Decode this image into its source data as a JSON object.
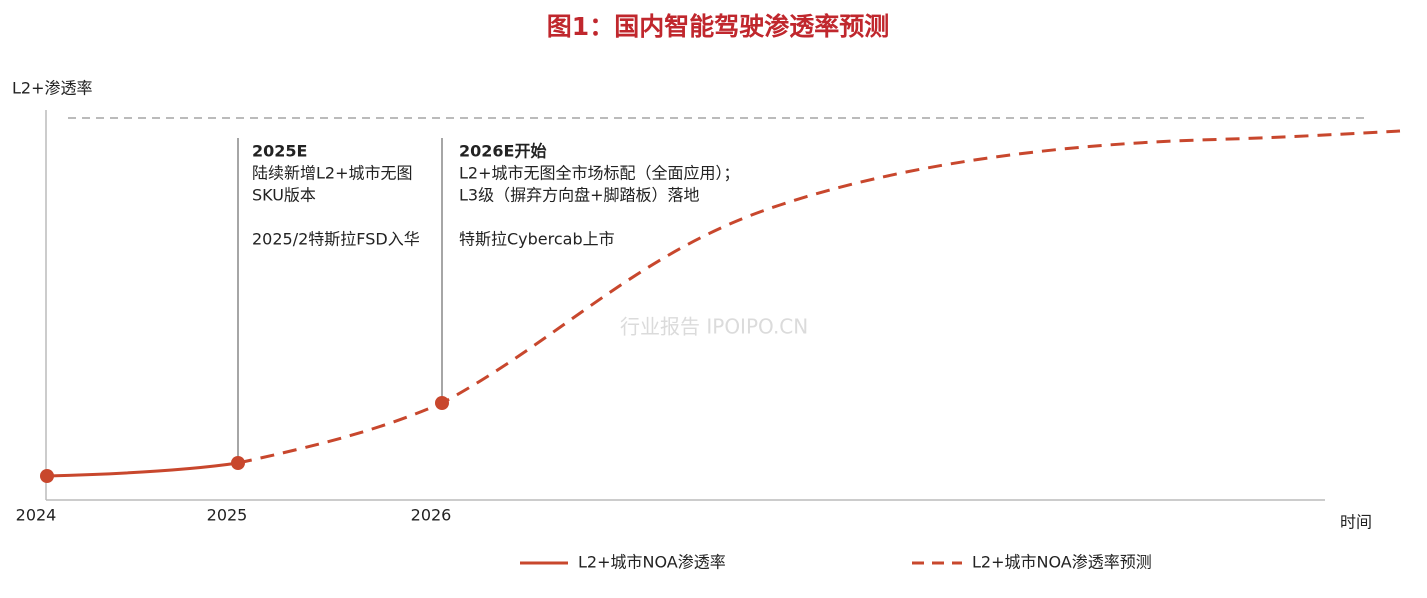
{
  "title": "图1：国内智能驾驶渗透率预测",
  "y_axis_label": "L2+渗透率",
  "x_axis_label": "时间",
  "x_ticks": [
    "2024",
    "2025",
    "2026"
  ],
  "annotations": [
    {
      "heading": "2025E",
      "paragraphs": [
        [
          "陆续新增L2+城市无图",
          "SKU版本"
        ],
        [
          "2025/2特斯拉FSD入华"
        ]
      ]
    },
    {
      "heading": "2026E开始",
      "paragraphs": [
        [
          "L2+城市无图全市场标配（全面应用）；",
          "L3级（摒弃方向盘+脚踏板）落地"
        ],
        [
          "特斯拉Cybercab上市"
        ]
      ]
    }
  ],
  "legend": [
    "L2+城市NOA渗透率",
    "L2+城市NOA渗透率预测"
  ],
  "watermark": "行业报告 IPOIPO.CN"
}
